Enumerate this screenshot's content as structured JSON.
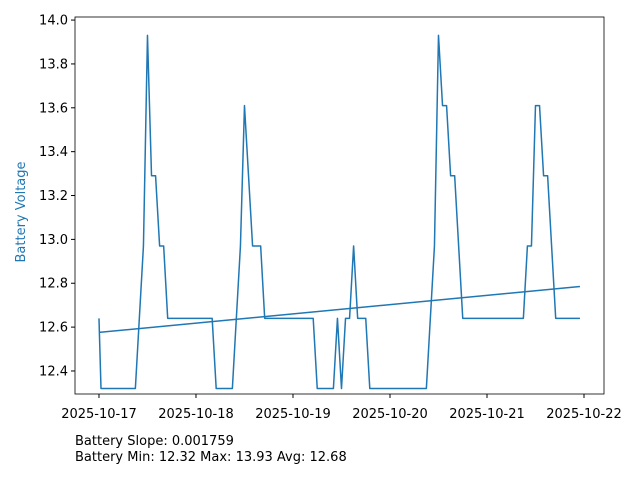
{
  "chart_data": {
    "type": "line",
    "y_label": "Battery Voltage",
    "y_label_color": "#1f77b4",
    "annotations": [
      "Battery Slope: 0.001759",
      "Battery Min: 12.32 Max: 13.93 Avg: 12.68"
    ],
    "x": [
      "2025-10-17T00:00",
      "2025-10-17T00:30",
      "2025-10-17T09:00",
      "2025-10-17T11:00",
      "2025-10-17T12:00",
      "2025-10-17T13:00",
      "2025-10-17T14:00",
      "2025-10-17T15:00",
      "2025-10-17T16:00",
      "2025-10-17T17:00",
      "2025-10-18T04:00",
      "2025-10-18T05:00",
      "2025-10-18T09:00",
      "2025-10-18T11:00",
      "2025-10-18T12:00",
      "2025-10-18T13:00",
      "2025-10-18T14:00",
      "2025-10-18T16:00",
      "2025-10-18T17:00",
      "2025-10-19T05:00",
      "2025-10-19T06:00",
      "2025-10-19T10:00",
      "2025-10-19T11:00",
      "2025-10-19T12:00",
      "2025-10-19T13:00",
      "2025-10-19T14:00",
      "2025-10-19T15:00",
      "2025-10-19T16:00",
      "2025-10-19T18:00",
      "2025-10-19T19:00",
      "2025-10-20T09:00",
      "2025-10-20T11:00",
      "2025-10-20T12:00",
      "2025-10-20T13:00",
      "2025-10-20T14:00",
      "2025-10-20T15:00",
      "2025-10-20T16:00",
      "2025-10-20T18:00",
      "2025-10-21T09:00",
      "2025-10-21T10:00",
      "2025-10-21T11:00",
      "2025-10-21T12:00",
      "2025-10-21T13:00",
      "2025-10-21T14:00",
      "2025-10-21T15:00",
      "2025-10-21T17:00",
      "2025-10-21T23:00"
    ],
    "series": [
      {
        "color": "#1f77b4",
        "values": [
          12.64,
          12.32,
          12.32,
          12.97,
          13.93,
          13.29,
          13.29,
          12.97,
          12.97,
          12.64,
          12.64,
          12.32,
          12.32,
          12.97,
          13.61,
          13.29,
          12.97,
          12.97,
          12.64,
          12.64,
          12.32,
          12.32,
          12.64,
          12.32,
          12.64,
          12.64,
          12.97,
          12.64,
          12.64,
          12.32,
          12.32,
          12.97,
          13.93,
          13.61,
          13.61,
          13.29,
          13.29,
          12.64,
          12.64,
          12.97,
          12.97,
          13.61,
          13.61,
          13.29,
          13.29,
          12.64,
          12.64
        ]
      },
      {
        "color": "#1f77b4",
        "x": [
          "2025-10-17T00:00",
          "2025-10-21T23:00"
        ],
        "values": [
          12.576,
          12.785
        ]
      }
    ],
    "xlim": [
      "2025-10-16T18:04",
      "2025-10-22T04:57"
    ],
    "xticks": [
      "2025-10-17",
      "2025-10-18",
      "2025-10-19",
      "2025-10-20",
      "2025-10-21",
      "2025-10-22"
    ],
    "ylim": [
      12.295,
      14.014
    ],
    "yticks": [
      12.4,
      12.6,
      12.8,
      {
        "value": 13,
        "label": "13.0"
      },
      13.2,
      13.4,
      13.6,
      13.8,
      {
        "value": 14,
        "label": "14.0"
      }
    ],
    "grid": false
  }
}
